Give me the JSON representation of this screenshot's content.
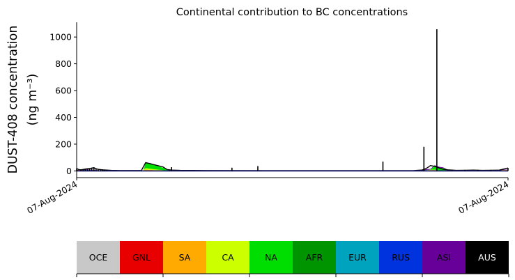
{
  "chart_data": {
    "type": "area",
    "title": "Continental contribution to BC concentrations",
    "ylabel": "DUST-408 concentration",
    "ylabel_unit": "(ng m⁻³)",
    "xlabel": "",
    "ylim": [
      -50,
      1110
    ],
    "yticks": [
      0,
      200,
      400,
      600,
      800,
      1000
    ],
    "xticks": [
      {
        "pos": 0.0,
        "label": "07-Aug-2024"
      },
      {
        "pos": 1.0,
        "label": "07-Aug-2024"
      }
    ],
    "x_domain": [
      0,
      1
    ],
    "grid": false,
    "stacked": true,
    "legend": {
      "placement": "below",
      "entries": [
        {
          "name": "OCE",
          "color": "#c8c8c8",
          "text_color": "#000000"
        },
        {
          "name": "GNL",
          "color": "#e80000",
          "text_color": "#000000"
        },
        {
          "name": "SA",
          "color": "#ffaa00",
          "text_color": "#000000"
        },
        {
          "name": "CA",
          "color": "#ccff00",
          "text_color": "#000000"
        },
        {
          "name": "NA",
          "color": "#00dd00",
          "text_color": "#000000"
        },
        {
          "name": "AFR",
          "color": "#009500",
          "text_color": "#000000"
        },
        {
          "name": "EUR",
          "color": "#00a3bd",
          "text_color": "#000000"
        },
        {
          "name": "RUS",
          "color": "#0033dd",
          "text_color": "#000000"
        },
        {
          "name": "ASI",
          "color": "#660099",
          "text_color": "#000000"
        },
        {
          "name": "AUS",
          "color": "#000000",
          "text_color": "#ffffff"
        }
      ]
    },
    "series": [
      {
        "name": "GNL",
        "color": "#e80000",
        "points": [
          [
            0.0,
            8
          ],
          [
            0.01,
            5
          ],
          [
            0.02,
            2
          ],
          [
            0.04,
            0
          ],
          [
            0.81,
            0
          ],
          [
            0.82,
            3
          ],
          [
            0.83,
            5
          ],
          [
            0.84,
            0
          ],
          [
            0.97,
            0
          ],
          [
            0.98,
            4
          ],
          [
            1.0,
            6
          ]
        ]
      },
      {
        "name": "SA",
        "color": "#ffaa00",
        "points": [
          [
            0.0,
            0
          ],
          [
            0.15,
            0
          ],
          [
            0.16,
            10
          ],
          [
            0.18,
            6
          ],
          [
            0.2,
            2
          ],
          [
            0.21,
            0
          ],
          [
            0.8,
            0
          ],
          [
            0.81,
            4
          ],
          [
            0.83,
            2
          ],
          [
            0.84,
            0
          ],
          [
            0.97,
            0
          ],
          [
            0.99,
            3
          ],
          [
            1.0,
            2
          ]
        ]
      },
      {
        "name": "CA",
        "color": "#ccff00",
        "points": [
          [
            0.0,
            0
          ],
          [
            0.15,
            0
          ],
          [
            0.16,
            10
          ],
          [
            0.19,
            5
          ],
          [
            0.22,
            0
          ],
          [
            0.78,
            0
          ],
          [
            0.79,
            3
          ],
          [
            0.8,
            0
          ],
          [
            0.82,
            4
          ],
          [
            0.84,
            0
          ],
          [
            1.0,
            0
          ]
        ]
      },
      {
        "name": "NA",
        "color": "#00dd00",
        "points": [
          [
            0.0,
            0
          ],
          [
            0.015,
            2
          ],
          [
            0.03,
            4
          ],
          [
            0.05,
            3
          ],
          [
            0.07,
            0
          ],
          [
            0.155,
            0
          ],
          [
            0.16,
            42
          ],
          [
            0.18,
            32
          ],
          [
            0.2,
            18
          ],
          [
            0.215,
            4
          ],
          [
            0.23,
            0
          ],
          [
            0.82,
            0
          ],
          [
            0.83,
            28
          ],
          [
            0.85,
            18
          ],
          [
            0.86,
            6
          ],
          [
            0.87,
            3
          ],
          [
            0.89,
            2
          ],
          [
            0.91,
            0
          ],
          [
            1.0,
            0
          ]
        ]
      },
      {
        "name": "AFR",
        "color": "#009500",
        "points": [
          [
            0.0,
            0
          ],
          [
            0.16,
            0
          ],
          [
            0.17,
            4
          ],
          [
            0.19,
            0
          ],
          [
            0.21,
            0
          ],
          [
            0.22,
            3
          ],
          [
            0.24,
            1
          ],
          [
            0.26,
            0
          ],
          [
            0.83,
            0
          ],
          [
            0.85,
            4
          ],
          [
            0.87,
            0
          ],
          [
            1.0,
            0
          ]
        ]
      },
      {
        "name": "EUR",
        "color": "#00a3bd",
        "points": [
          [
            0.0,
            0
          ],
          [
            0.04,
            1
          ],
          [
            0.08,
            0
          ],
          [
            0.55,
            0
          ],
          [
            0.6,
            1
          ],
          [
            0.65,
            0
          ],
          [
            1.0,
            0
          ]
        ]
      },
      {
        "name": "RUS",
        "color": "#0033dd",
        "points": [
          [
            0.0,
            0
          ],
          [
            0.02,
            2
          ],
          [
            0.04,
            1
          ],
          [
            0.06,
            0
          ],
          [
            0.16,
            0
          ],
          [
            0.17,
            2
          ],
          [
            0.19,
            0
          ],
          [
            0.78,
            0
          ],
          [
            0.8,
            2
          ],
          [
            0.82,
            1
          ],
          [
            0.83,
            0
          ],
          [
            1.0,
            0
          ]
        ]
      },
      {
        "name": "ASI",
        "color": "#660099",
        "points": [
          [
            0.0,
            0
          ],
          [
            0.02,
            3
          ],
          [
            0.04,
            2
          ],
          [
            0.06,
            0
          ],
          [
            0.77,
            0
          ],
          [
            0.8,
            6
          ],
          [
            0.82,
            4
          ],
          [
            0.84,
            6
          ],
          [
            0.86,
            2
          ],
          [
            0.88,
            0
          ],
          [
            0.97,
            0
          ],
          [
            0.99,
            3
          ],
          [
            1.0,
            1
          ]
        ]
      }
    ],
    "total_line": {
      "name": "AUS",
      "color": "#000000",
      "points": [
        [
          0.0,
          18
        ],
        [
          0.005,
          10
        ],
        [
          0.01,
          8
        ],
        [
          0.02,
          14
        ],
        [
          0.03,
          18
        ],
        [
          0.04,
          24
        ],
        [
          0.045,
          16
        ],
        [
          0.05,
          12
        ],
        [
          0.06,
          8
        ],
        [
          0.08,
          4
        ],
        [
          0.1,
          3
        ],
        [
          0.15,
          3
        ],
        [
          0.16,
          62
        ],
        [
          0.2,
          30
        ],
        [
          0.21,
          10
        ],
        [
          0.22,
          6
        ],
        [
          0.24,
          4
        ],
        [
          0.3,
          3
        ],
        [
          0.55,
          2
        ],
        [
          0.78,
          2
        ],
        [
          0.8,
          6
        ],
        [
          0.81,
          18
        ],
        [
          0.815,
          28
        ],
        [
          0.82,
          40
        ],
        [
          0.83,
          34
        ],
        [
          0.84,
          22
        ],
        [
          0.85,
          12
        ],
        [
          0.86,
          8
        ],
        [
          0.88,
          4
        ],
        [
          0.9,
          5
        ],
        [
          0.92,
          6
        ],
        [
          0.94,
          4
        ],
        [
          0.96,
          5
        ],
        [
          0.98,
          6
        ],
        [
          1.0,
          22
        ]
      ]
    },
    "spikes": [
      {
        "x": 0.0,
        "value": 18
      },
      {
        "x": 0.01,
        "value": 8
      },
      {
        "x": 0.015,
        "value": 12
      },
      {
        "x": 0.02,
        "value": 15
      },
      {
        "x": 0.025,
        "value": 18
      },
      {
        "x": 0.03,
        "value": 20
      },
      {
        "x": 0.035,
        "value": 24
      },
      {
        "x": 0.04,
        "value": 26
      },
      {
        "x": 0.045,
        "value": 20
      },
      {
        "x": 0.05,
        "value": 14
      },
      {
        "x": 0.055,
        "value": 10
      },
      {
        "x": 0.06,
        "value": 12
      },
      {
        "x": 0.065,
        "value": 8
      },
      {
        "x": 0.07,
        "value": 6
      },
      {
        "x": 0.22,
        "value": 28
      },
      {
        "x": 0.36,
        "value": 24
      },
      {
        "x": 0.42,
        "value": 36
      },
      {
        "x": 0.71,
        "value": 70
      },
      {
        "x": 0.805,
        "value": 180
      },
      {
        "x": 0.835,
        "value": 1058
      },
      {
        "x": 0.87,
        "value": 8
      },
      {
        "x": 0.9,
        "value": 8
      },
      {
        "x": 0.93,
        "value": 8
      },
      {
        "x": 0.96,
        "value": 8
      },
      {
        "x": 1.0,
        "value": 22
      }
    ]
  }
}
